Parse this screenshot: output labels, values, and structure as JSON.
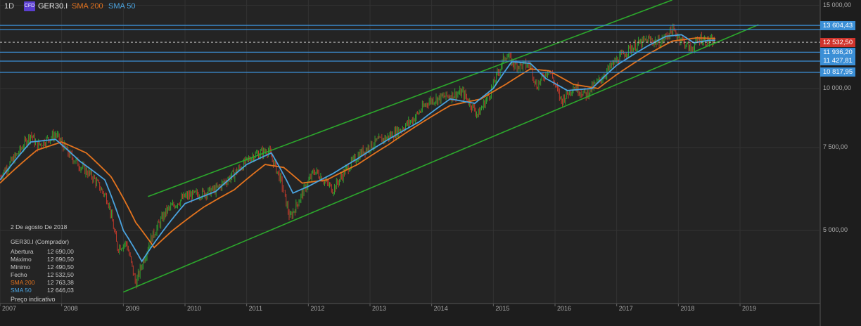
{
  "header": {
    "timeframe": "1D",
    "cfd_badge": "CFD",
    "symbol": "GER30.I",
    "sma200_label": "SMA 200",
    "sma50_label": "SMA 50"
  },
  "info_panel": {
    "date": "2 De agosto De 2018",
    "instrument": "GER30.I (Comprador)",
    "rows": [
      {
        "label": "Abertura",
        "value": "12 690,00"
      },
      {
        "label": "Máximo",
        "value": "12 690,50"
      },
      {
        "label": "Mínimo",
        "value": "12 490,50"
      },
      {
        "label": "Fecho",
        "value": "12 532,50"
      },
      {
        "label": "SMA 200",
        "value": "12 763,38"
      },
      {
        "label": "SMA 50",
        "value": "12 646,03"
      }
    ],
    "footer": "Preço indicativo"
  },
  "colors": {
    "background": "#242424",
    "grid": "#333333",
    "candle_up": "#2fa12f",
    "candle_down": "#c0392b",
    "sma200": "#e3731e",
    "sma50": "#4aa3df",
    "channel": "#2ca82c",
    "level": "#3b8fd6",
    "current_price": "#d0342c"
  },
  "chart_data": {
    "type": "candlestick",
    "symbol": "GER30.I",
    "timeframe": "1D",
    "x_ticks": [
      "2007",
      "2008",
      "2009",
      "2010",
      "2011",
      "2012",
      "2013",
      "2014",
      "2015",
      "2016",
      "2017",
      "2018",
      "2019"
    ],
    "y_ticks": [
      {
        "value": 15000,
        "label": "15 000,00"
      },
      {
        "value": 10000,
        "label": "10 000,00"
      },
      {
        "value": 7500,
        "label": "7 500,00"
      },
      {
        "value": 5000,
        "label": "5 000,00"
      }
    ],
    "y_scale": "log",
    "y_range": [
      3500,
      15400
    ],
    "x_range": [
      2007.0,
      2020.3
    ],
    "horizontal_levels": [
      {
        "value": 13604.43,
        "label": "13 604,43",
        "shown": true
      },
      {
        "value": 13322.49,
        "label": "13 322,49",
        "shown": false
      },
      {
        "value": 11936.2,
        "label": "11 936,20",
        "shown": true
      },
      {
        "value": 11427.81,
        "label": "11 427,81",
        "shown": true
      },
      {
        "value": 10817.95,
        "label": "10 817,95",
        "shown": true
      }
    ],
    "current_price": {
      "value": 12532.5,
      "label": "12 532,50"
    },
    "channel_lines": [
      {
        "from": [
          2009.4,
          5900
        ],
        "to": [
          2017.9,
          15400
        ]
      },
      {
        "from": [
          2009.0,
          3700
        ],
        "to": [
          2019.3,
          13650
        ]
      }
    ],
    "price_anchors": [
      [
        2007.0,
        6500
      ],
      [
        2007.3,
        7300
      ],
      [
        2007.5,
        8000
      ],
      [
        2007.6,
        7550
      ],
      [
        2007.9,
        8000
      ],
      [
        2008.1,
        7300
      ],
      [
        2008.3,
        6850
      ],
      [
        2008.5,
        6500
      ],
      [
        2008.75,
        5800
      ],
      [
        2008.9,
        4600
      ],
      [
        2009.05,
        4700
      ],
      [
        2009.2,
        3850
      ],
      [
        2009.45,
        4800
      ],
      [
        2009.7,
        5500
      ],
      [
        2010.0,
        5900
      ],
      [
        2010.3,
        6000
      ],
      [
        2010.5,
        6100
      ],
      [
        2010.8,
        6600
      ],
      [
        2011.1,
        7200
      ],
      [
        2011.35,
        7400
      ],
      [
        2011.55,
        6400
      ],
      [
        2011.7,
        5300
      ],
      [
        2011.85,
        5800
      ],
      [
        2012.1,
        6700
      ],
      [
        2012.4,
        6100
      ],
      [
        2012.6,
        6700
      ],
      [
        2012.85,
        7300
      ],
      [
        2013.1,
        7700
      ],
      [
        2013.3,
        7900
      ],
      [
        2013.5,
        8200
      ],
      [
        2013.7,
        8600
      ],
      [
        2013.95,
        9400
      ],
      [
        2014.2,
        9600
      ],
      [
        2014.5,
        9800
      ],
      [
        2014.75,
        8800
      ],
      [
        2014.95,
        9800
      ],
      [
        2015.2,
        11800
      ],
      [
        2015.35,
        11200
      ],
      [
        2015.6,
        11200
      ],
      [
        2015.7,
        10100
      ],
      [
        2015.9,
        11000
      ],
      [
        2016.1,
        9400
      ],
      [
        2016.3,
        10100
      ],
      [
        2016.5,
        9700
      ],
      [
        2016.75,
        10500
      ],
      [
        2016.95,
        11300
      ],
      [
        2017.2,
        12100
      ],
      [
        2017.5,
        12700
      ],
      [
        2017.7,
        12500
      ],
      [
        2017.9,
        13300
      ],
      [
        2018.1,
        12500
      ],
      [
        2018.2,
        12100
      ],
      [
        2018.35,
        12800
      ],
      [
        2018.45,
        12600
      ],
      [
        2018.6,
        12550
      ]
    ],
    "sma200_anchors": [
      [
        2007.0,
        6300
      ],
      [
        2007.6,
        7400
      ],
      [
        2008.0,
        7700
      ],
      [
        2008.4,
        7300
      ],
      [
        2008.8,
        6500
      ],
      [
        2009.2,
        5200
      ],
      [
        2009.5,
        4600
      ],
      [
        2009.8,
        5000
      ],
      [
        2010.3,
        5600
      ],
      [
        2010.8,
        6100
      ],
      [
        2011.3,
        6900
      ],
      [
        2011.6,
        6800
      ],
      [
        2011.9,
        6300
      ],
      [
        2012.3,
        6400
      ],
      [
        2012.8,
        6900
      ],
      [
        2013.3,
        7600
      ],
      [
        2013.8,
        8400
      ],
      [
        2014.3,
        9200
      ],
      [
        2014.8,
        9500
      ],
      [
        2015.2,
        10200
      ],
      [
        2015.6,
        11000
      ],
      [
        2015.9,
        10900
      ],
      [
        2016.3,
        10200
      ],
      [
        2016.7,
        10000
      ],
      [
        2017.0,
        10700
      ],
      [
        2017.5,
        11800
      ],
      [
        2017.9,
        12600
      ],
      [
        2018.3,
        12800
      ],
      [
        2018.6,
        12760
      ]
    ],
    "sma50_anchors": [
      [
        2007.0,
        6400
      ],
      [
        2007.5,
        7700
      ],
      [
        2007.9,
        7800
      ],
      [
        2008.3,
        7000
      ],
      [
        2008.7,
        6400
      ],
      [
        2009.0,
        5000
      ],
      [
        2009.3,
        4300
      ],
      [
        2009.6,
        4900
      ],
      [
        2010.0,
        5700
      ],
      [
        2010.5,
        6050
      ],
      [
        2011.0,
        6900
      ],
      [
        2011.4,
        7300
      ],
      [
        2011.75,
        6000
      ],
      [
        2012.0,
        6200
      ],
      [
        2012.4,
        6600
      ],
      [
        2012.8,
        7100
      ],
      [
        2013.3,
        7800
      ],
      [
        2013.8,
        8500
      ],
      [
        2014.3,
        9500
      ],
      [
        2014.7,
        9300
      ],
      [
        2015.0,
        10000
      ],
      [
        2015.3,
        11400
      ],
      [
        2015.6,
        11300
      ],
      [
        2015.85,
        10500
      ],
      [
        2016.2,
        9900
      ],
      [
        2016.6,
        10000
      ],
      [
        2017.0,
        11200
      ],
      [
        2017.5,
        12300
      ],
      [
        2017.8,
        12900
      ],
      [
        2018.05,
        13000
      ],
      [
        2018.25,
        12500
      ],
      [
        2018.5,
        12650
      ],
      [
        2018.6,
        12646
      ]
    ]
  }
}
